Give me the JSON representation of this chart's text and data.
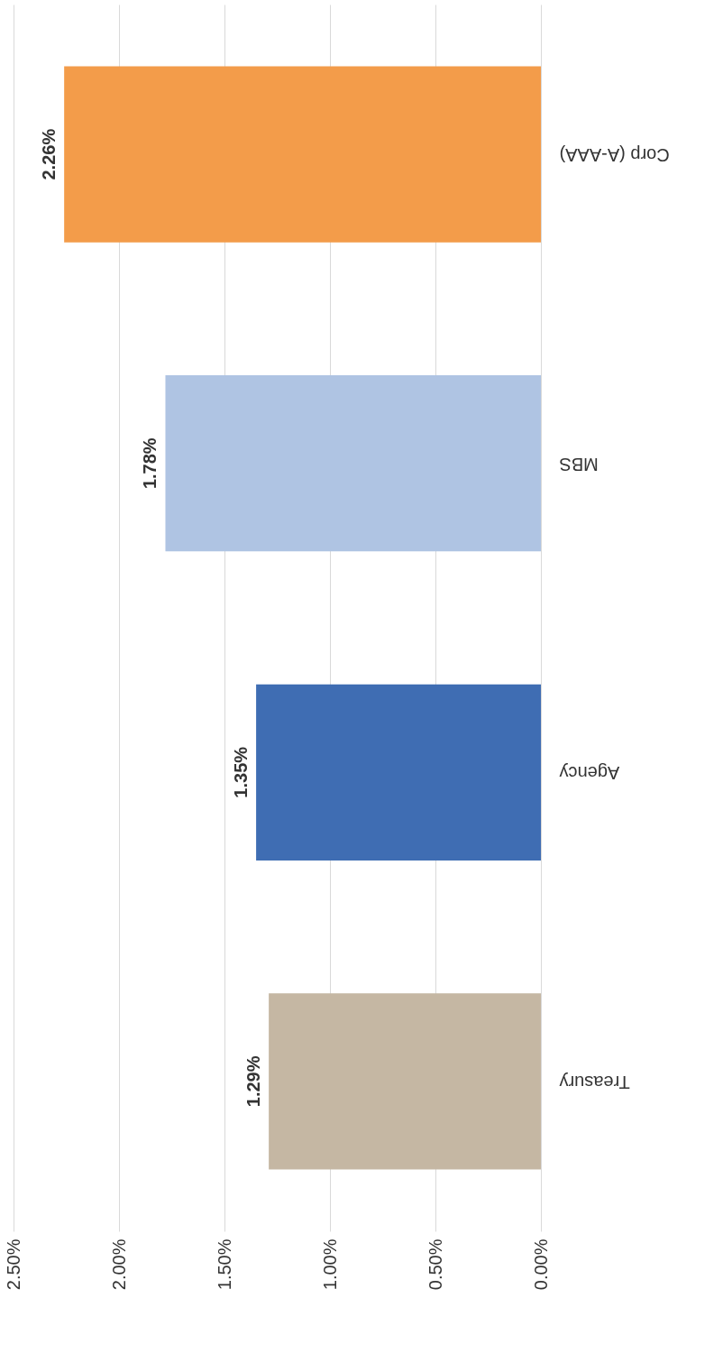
{
  "chart_data": {
    "type": "bar",
    "orientation": "horizontal",
    "categories": [
      "Corp (A-AAA)",
      "MBS",
      "Agency",
      "Treasury"
    ],
    "values": [
      2.26,
      1.78,
      1.35,
      1.29
    ],
    "colors": [
      "#f39c4a",
      "#afc4e3",
      "#3f6db3",
      "#c5b7a3"
    ],
    "value_labels": [
      "2.26%",
      "1.78%",
      "1.35%",
      "1.29%"
    ],
    "xlim": [
      2.5,
      0
    ],
    "xticks": [
      {
        "value": 2.5,
        "label": "2.50%"
      },
      {
        "value": 2.0,
        "label": "2.00%"
      },
      {
        "value": 1.5,
        "label": "1.50%"
      },
      {
        "value": 1.0,
        "label": "1.00%"
      },
      {
        "value": 0.5,
        "label": "0.50%"
      },
      {
        "value": 0.0,
        "label": "0.00%"
      }
    ],
    "grid": "x"
  }
}
